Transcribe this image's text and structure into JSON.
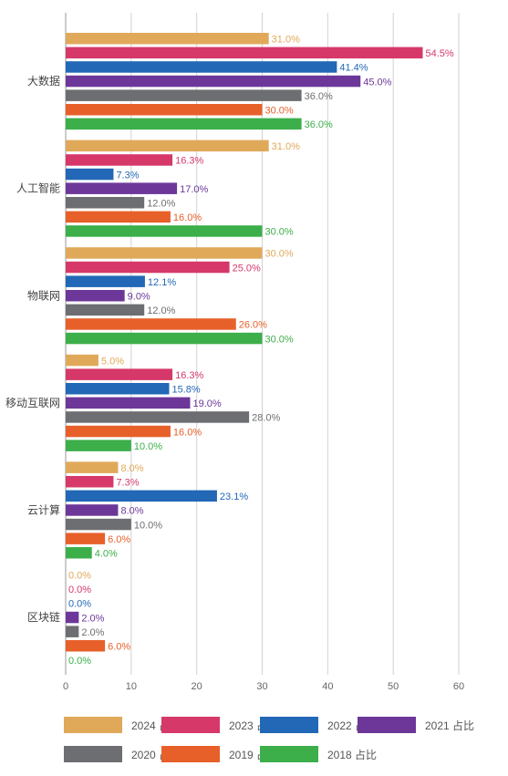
{
  "chart_data": {
    "type": "bar",
    "orientation": "horizontal",
    "categories": [
      "大数据",
      "人工智能",
      "物联网",
      "移动互联网",
      "云计算",
      "区块链"
    ],
    "series": [
      {
        "name": "2024 占比",
        "color": "#E0A95A",
        "values": [
          31.0,
          31.0,
          30.0,
          5.0,
          8.0,
          0.0
        ],
        "labels": [
          "31.0%",
          "31.0%",
          "30.0%",
          "5.0%",
          "8.0%",
          "0.0%"
        ]
      },
      {
        "name": "2023 占比",
        "color": "#D6386A",
        "values": [
          54.5,
          16.3,
          25.0,
          16.3,
          7.3,
          0.0
        ],
        "labels": [
          "54.5%",
          "16.3%",
          "25.0%",
          "16.3%",
          "7.3%",
          "0.0%"
        ]
      },
      {
        "name": "2022 占比",
        "color": "#2268B6",
        "values": [
          41.4,
          7.3,
          12.1,
          15.8,
          23.1,
          0.0
        ],
        "labels": [
          "41.4%",
          "7.3%",
          "12.1%",
          "15.8%",
          "23.1%",
          "0.0%"
        ]
      },
      {
        "name": "2021 占比",
        "color": "#6C3799",
        "values": [
          45.0,
          17.0,
          9.0,
          19.0,
          8.0,
          2.0
        ],
        "labels": [
          "45.0%",
          "17.0%",
          "9.0%",
          "19.0%",
          "8.0%",
          "2.0%"
        ]
      },
      {
        "name": "2020 占比",
        "color": "#6D6E71",
        "values": [
          36.0,
          12.0,
          12.0,
          28.0,
          10.0,
          2.0
        ],
        "labels": [
          "36.0%",
          "12.0%",
          "12.0%",
          "28.0%",
          "10.0%",
          "2.0%"
        ]
      },
      {
        "name": "2019 占比",
        "color": "#E7602A",
        "values": [
          30.0,
          16.0,
          26.0,
          16.0,
          6.0,
          6.0
        ],
        "labels": [
          "30.0%",
          "16.0%",
          "26.0%",
          "16.0%",
          "6.0%",
          "6.0%"
        ]
      },
      {
        "name": "2018 占比",
        "color": "#3CAF4A",
        "values": [
          36.0,
          30.0,
          30.0,
          10.0,
          4.0,
          0.0
        ],
        "labels": [
          "36.0%",
          "30.0%",
          "30.0%",
          "10.0%",
          "4.0%",
          "0.0%"
        ]
      }
    ],
    "xlim": [
      0,
      60
    ],
    "xticks": [
      0,
      10,
      20,
      30,
      40,
      50,
      60
    ],
    "xtick_labels": [
      "0",
      "10",
      "20",
      "30",
      "40",
      "50",
      "60"
    ],
    "grid": true,
    "legend_position": "bottom"
  }
}
